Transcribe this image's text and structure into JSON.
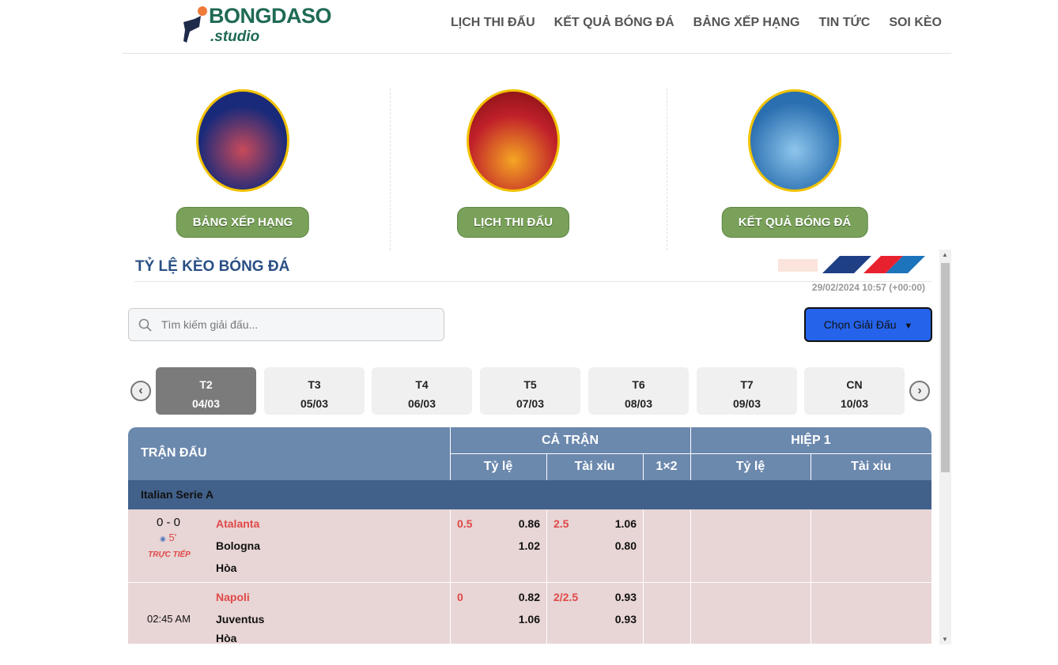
{
  "logo": {
    "brand": "BONGDASO",
    "sub": ".studio"
  },
  "nav": [
    "LỊCH THI ĐẤU",
    "KẾT QUẢ BÓNG ĐÁ",
    "BẢNG XẾP HẠNG",
    "TIN TỨC",
    "SOI KÈO"
  ],
  "features": [
    {
      "label": "BẢNG XẾP HẠNG"
    },
    {
      "label": "LỊCH THI ĐẤU"
    },
    {
      "label": "KẾT QUẢ BÓNG ĐÁ"
    }
  ],
  "odds": {
    "title": "TỶ LỆ KÈO BÓNG ĐÁ",
    "datetime": "29/02/2024 10:57 (+00:00)",
    "search_placeholder": "Tìm kiếm giải đấu...",
    "choose_label": "Chọn Giải Đấu"
  },
  "days": [
    {
      "d": "T2",
      "date": "04/03"
    },
    {
      "d": "T3",
      "date": "05/03"
    },
    {
      "d": "T4",
      "date": "06/03"
    },
    {
      "d": "T5",
      "date": "07/03"
    },
    {
      "d": "T6",
      "date": "08/03"
    },
    {
      "d": "T7",
      "date": "09/03"
    },
    {
      "d": "CN",
      "date": "10/03"
    }
  ],
  "table": {
    "match": "TRẬN ĐẤU",
    "full": "CẢ TRẬN",
    "half": "HIỆP 1",
    "ratio": "Tỷ lệ",
    "ou": "Tài xỉu",
    "x12": "1×2",
    "ratio2": "Tỷ lệ",
    "ou2": "Tài xỉu"
  },
  "league": "Italian Serie A",
  "matches": [
    {
      "score": "0 - 0",
      "minute": "5'",
      "live": "TRỰC TIẾP",
      "time": "",
      "home": "Atalanta",
      "away": "Bologna",
      "draw": "Hòa",
      "hcp": "0.5",
      "hcp_h": "0.86",
      "hcp_a": "1.02",
      "ou": "2.5",
      "ou_o": "1.06",
      "ou_u": "0.80"
    },
    {
      "score": "",
      "minute": "",
      "live": "",
      "time": "02:45 AM",
      "home": "Napoli",
      "away": "Juventus",
      "draw": "Hòa",
      "hcp": "0",
      "hcp_h": "0.82",
      "hcp_a": "1.06",
      "ou": "2/2.5",
      "ou_o": "0.93",
      "ou_u": "0.93"
    }
  ],
  "colors": {
    "accent": "#2563eb",
    "header": "#6b88ad",
    "league": "#42618a",
    "row": "#e8d5d5",
    "button": "#7aa15a",
    "red": "#e04848"
  }
}
